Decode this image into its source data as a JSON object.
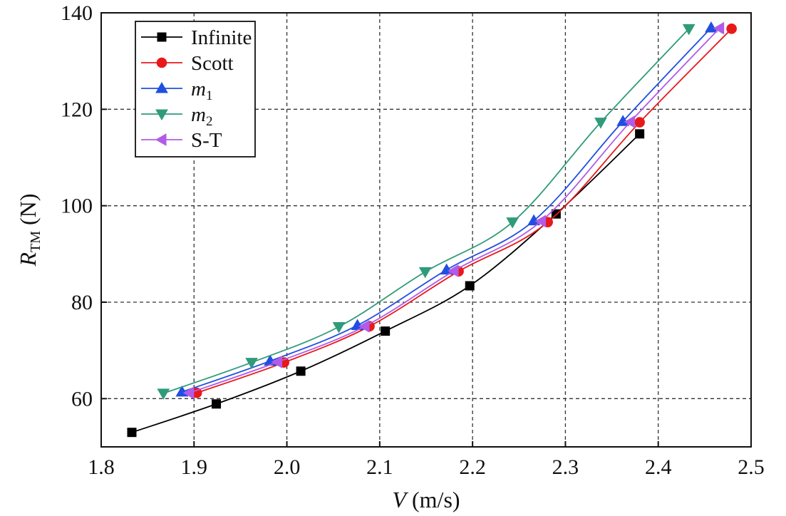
{
  "chart_data": {
    "type": "line",
    "xlabel": {
      "main": "V",
      "rest": " (m/s)"
    },
    "ylabel": {
      "main": "R",
      "sub": "TM",
      "rest": " (N)"
    },
    "xlim": [
      1.8,
      2.5
    ],
    "ylim": [
      50,
      140
    ],
    "xticks": [
      "1.8",
      "1.9",
      "2.0",
      "2.1",
      "2.2",
      "2.3",
      "2.4",
      "2.5"
    ],
    "yticks": [
      "60",
      "80",
      "100",
      "120",
      "140"
    ],
    "grid": true,
    "legend_position": "top-left",
    "series": [
      {
        "name": "Infinite",
        "name_main": "Infinite",
        "name_sub": "",
        "marker": "square",
        "color": "#000000",
        "x": [
          1.833,
          1.924,
          2.015,
          2.106,
          2.197,
          2.29,
          2.38
        ],
        "y": [
          53.0,
          58.9,
          65.7,
          74.0,
          83.4,
          98.3,
          114.9
        ]
      },
      {
        "name": "Scott",
        "name_main": "Scott",
        "name_sub": "",
        "marker": "circle",
        "color": "#e8191b",
        "x": [
          1.903,
          1.997,
          2.089,
          2.185,
          2.281,
          2.38,
          2.479
        ],
        "y": [
          61.2,
          67.5,
          75.0,
          86.4,
          96.6,
          117.3,
          136.7
        ]
      },
      {
        "name": "m1",
        "name_main": "m",
        "name_sub": "1",
        "marker": "triangle-up",
        "color": "#1f4fe0",
        "x": [
          1.887,
          1.982,
          2.076,
          2.172,
          2.266,
          2.362,
          2.457
        ],
        "y": [
          61.4,
          67.8,
          75.2,
          86.7,
          96.9,
          117.5,
          136.9
        ]
      },
      {
        "name": "m2",
        "name_main": "m",
        "name_sub": "2",
        "marker": "triangle-down",
        "color": "#2f9b7a",
        "x": [
          1.867,
          1.962,
          2.056,
          2.149,
          2.243,
          2.338,
          2.433
        ],
        "y": [
          61.1,
          67.5,
          74.9,
          86.3,
          96.6,
          117.3,
          136.7
        ]
      },
      {
        "name": "S-T",
        "name_main": "S-T",
        "name_sub": "",
        "marker": "triangle-left",
        "color": "#b15be8",
        "x": [
          1.895,
          1.99,
          2.084,
          2.18,
          2.274,
          2.37,
          2.466
        ],
        "y": [
          61.2,
          67.6,
          75.0,
          86.5,
          96.8,
          117.4,
          136.8
        ]
      }
    ]
  }
}
